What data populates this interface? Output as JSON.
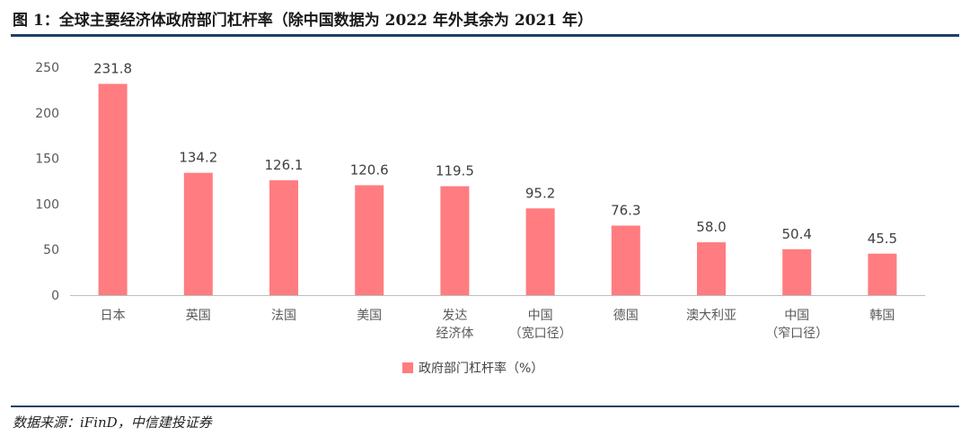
{
  "title": "图 1：全球主要经济体政府部门杠杆率（除中国数据为 2022 年外其余为 2021 年）",
  "source": "数据来源：iFinD，中信建投证券",
  "chart_data": {
    "type": "bar",
    "categories": [
      [
        "日本"
      ],
      [
        "英国"
      ],
      [
        "法国"
      ],
      [
        "美国"
      ],
      [
        "发达",
        "经济体"
      ],
      [
        "中国",
        "（宽口径）"
      ],
      [
        "德国"
      ],
      [
        "澳大利亚"
      ],
      [
        "中国",
        "（窄口径）"
      ],
      [
        "韩国"
      ]
    ],
    "series": [
      {
        "name": "政府部门杠杆率（%）",
        "values": [
          231.8,
          134.2,
          126.1,
          120.6,
          119.5,
          95.2,
          76.3,
          58.0,
          50.4,
          45.5
        ],
        "color": "#ff7c80"
      }
    ],
    "value_labels": [
      "231.8",
      "134.2",
      "126.1",
      "120.6",
      "119.5",
      "95.2",
      "76.3",
      "58.0",
      "50.4",
      "45.5"
    ],
    "yticks": [
      0,
      50,
      100,
      150,
      200,
      250
    ],
    "ylim": [
      0,
      250
    ],
    "grid": false,
    "legend_position": "bottom"
  }
}
